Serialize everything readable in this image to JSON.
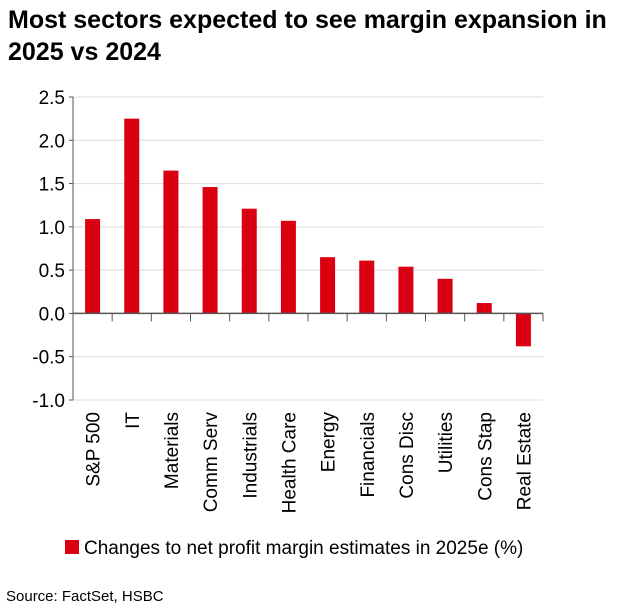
{
  "chart_data": {
    "type": "bar",
    "title": "Most sectors expected to see margin expansion in 2025 vs 2024",
    "categories": [
      "S&P 500",
      "IT",
      "Materials",
      "Comm Serv",
      "Industrials",
      "Health Care",
      "Energy",
      "Financials",
      "Cons Disc",
      "Utilities",
      "Cons Stap",
      "Real Estate"
    ],
    "series": [
      {
        "name": "Changes to net profit margin estimates in 2025e (%)",
        "values": [
          1.09,
          2.25,
          1.65,
          1.46,
          1.21,
          1.07,
          0.65,
          0.61,
          0.54,
          0.4,
          0.12,
          -0.38
        ]
      }
    ],
    "ylim": [
      -1.0,
      2.5
    ],
    "yticks": [
      "-1.0",
      "-0.5",
      "0.0",
      "0.5",
      "1.0",
      "1.5",
      "2.0",
      "2.5"
    ],
    "grid": true,
    "legend": "bottom",
    "bar_color": "#DB0011",
    "source": "Source: FactSet, HSBC"
  }
}
